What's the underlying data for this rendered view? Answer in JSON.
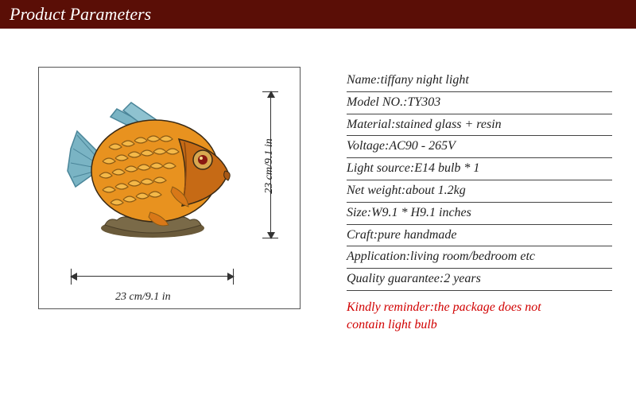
{
  "header": {
    "title": "Product Parameters"
  },
  "dimensions": {
    "height_label": "23 cm/9.1 in",
    "width_label": "23 cm/9.1 in"
  },
  "specs": [
    {
      "label": "Name",
      "value": "tiffany night light"
    },
    {
      "label": "Model NO.",
      "value": "TY303"
    },
    {
      "label": "Material",
      "value": "stained glass + resin"
    },
    {
      "label": "Voltage",
      "value": "AC90 - 265V"
    },
    {
      "label": "Light source",
      "value": "E14 bulb * 1"
    },
    {
      "label": "Net weight",
      "value": "about 1.2kg"
    },
    {
      "label": "Size",
      "value": "W9.1 * H9.1 inches"
    },
    {
      "label": "Craft",
      "value": "pure handmade"
    },
    {
      "label": "Application",
      "value": "living room/bedroom etc"
    },
    {
      "label": "Quality guarantee",
      "value": "2 years"
    }
  ],
  "reminder": {
    "line1": "Kindly reminder:the package does not",
    "line2": "contain light bulb"
  },
  "colors": {
    "header_bg": "#5a0e06",
    "header_text": "#ffffff",
    "body_text": "#222222",
    "reminder_text": "#d10000",
    "rule_color": "#444444",
    "fish_body_main": "#e8921f",
    "fish_body_light": "#f4b848",
    "fish_body_dark": "#c66a15",
    "fish_fin": "#7ab4c4",
    "fish_fin_dark": "#4a8599",
    "fish_eye_red": "#8a1810",
    "fish_outline": "#3a2a15",
    "base_color": "#6a5a3a"
  }
}
